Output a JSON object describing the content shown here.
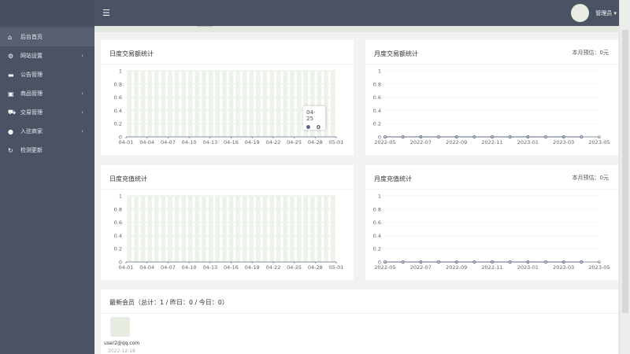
{
  "header": {
    "user": "管理员",
    "menu_icon": "hamburger-icon"
  },
  "sidebar": {
    "items": [
      {
        "label": "后台首页",
        "icon": "home-icon",
        "active": true,
        "sub": false
      },
      {
        "label": "网站设置",
        "icon": "gear-icon",
        "sub": true
      },
      {
        "label": "公告管理",
        "icon": "card-icon",
        "sub": false
      },
      {
        "label": "商品管理",
        "icon": "bag-icon",
        "sub": true
      },
      {
        "label": "交易管理",
        "icon": "cart-icon",
        "sub": true
      },
      {
        "label": "入驻商家",
        "icon": "user-icon",
        "sub": true
      },
      {
        "label": "检测更新",
        "icon": "refresh-icon",
        "sub": false
      }
    ]
  },
  "cards": {
    "daily_trade": {
      "title": "日度交易额统计"
    },
    "monthly_trade": {
      "title": "月度交易额统计",
      "extra": "本月预估：0元"
    },
    "daily_recharge": {
      "title": "日度充值统计"
    },
    "monthly_recharge": {
      "title": "月度充值统计",
      "extra": "本月预估：0元"
    }
  },
  "tooltip": {
    "label": "04-25",
    "value": "0"
  },
  "members": {
    "title": "最新会员（总计：1 / 昨日：0 / 今日：0）",
    "list": [
      {
        "email": "user2@qq.com",
        "date": "2022-12-18"
      }
    ]
  },
  "chart_data": [
    {
      "type": "bar",
      "title": "日度交易额统计",
      "categories": [
        "04-01",
        "04-02",
        "04-03",
        "04-04",
        "04-05",
        "04-06",
        "04-07",
        "04-08",
        "04-09",
        "04-10",
        "04-11",
        "04-12",
        "04-13",
        "04-14",
        "04-15",
        "04-16",
        "04-17",
        "04-18",
        "04-19",
        "04-20",
        "04-21",
        "04-22",
        "04-23",
        "04-24",
        "04-25",
        "04-26",
        "04-27",
        "04-28",
        "04-29",
        "04-30",
        "05-01"
      ],
      "values": [
        0,
        0,
        0,
        0,
        0,
        0,
        0,
        0,
        0,
        0,
        0,
        0,
        0,
        0,
        0,
        0,
        0,
        0,
        0,
        0,
        0,
        0,
        0,
        0,
        0,
        0,
        0,
        0,
        0,
        0,
        0
      ],
      "xticks": [
        "04-01",
        "04-04",
        "04-07",
        "04-10",
        "04-13",
        "04-16",
        "04-19",
        "04-22",
        "04-25",
        "04-28",
        "05-01"
      ],
      "yticks": [
        "0",
        "0.2",
        "0.4",
        "0.6",
        "0.8",
        "1"
      ],
      "ylim": [
        0,
        1
      ]
    },
    {
      "type": "line",
      "title": "月度交易额统计",
      "categories": [
        "2022-05",
        "2022-06",
        "2022-07",
        "2022-08",
        "2022-09",
        "2022-10",
        "2022-11",
        "2022-12",
        "2023-01",
        "2023-02",
        "2023-03",
        "2023-04",
        "2023-05"
      ],
      "values": [
        0,
        0,
        0,
        0,
        0,
        0,
        0,
        0,
        0,
        0,
        0,
        0,
        0
      ],
      "xticks": [
        "2022-05",
        "2022-07",
        "2022-09",
        "2022-11",
        "2023-01",
        "2023-03",
        "2023-05"
      ],
      "yticks": [
        "0",
        "0.2",
        "0.4",
        "0.6",
        "0.8",
        "1"
      ],
      "ylim": [
        0,
        1
      ],
      "color": "#5b6790"
    },
    {
      "type": "bar",
      "title": "日度充值统计",
      "categories": [
        "04-01",
        "04-02",
        "04-03",
        "04-04",
        "04-05",
        "04-06",
        "04-07",
        "04-08",
        "04-09",
        "04-10",
        "04-11",
        "04-12",
        "04-13",
        "04-14",
        "04-15",
        "04-16",
        "04-17",
        "04-18",
        "04-19",
        "04-20",
        "04-21",
        "04-22",
        "04-23",
        "04-24",
        "04-25",
        "04-26",
        "04-27",
        "04-28",
        "04-29",
        "04-30",
        "05-01"
      ],
      "values": [
        0,
        0,
        0,
        0,
        0,
        0,
        0,
        0,
        0,
        0,
        0,
        0,
        0,
        0,
        0,
        0,
        0,
        0,
        0,
        0,
        0,
        0,
        0,
        0,
        0,
        0,
        0,
        0,
        0,
        0,
        0
      ],
      "xticks": [
        "04-01",
        "04-04",
        "04-07",
        "04-10",
        "04-13",
        "04-16",
        "04-19",
        "04-22",
        "04-25",
        "04-28",
        "05-01"
      ],
      "yticks": [
        "0",
        "0.2",
        "0.4",
        "0.6",
        "0.8",
        "1"
      ],
      "ylim": [
        0,
        1
      ]
    },
    {
      "type": "line",
      "title": "月度充值统计",
      "categories": [
        "2022-05",
        "2022-06",
        "2022-07",
        "2022-08",
        "2022-09",
        "2022-10",
        "2022-11",
        "2022-12",
        "2023-01",
        "2023-02",
        "2023-03",
        "2023-04",
        "2023-05"
      ],
      "values": [
        0,
        0,
        0,
        0,
        0,
        0,
        0,
        0,
        0,
        0,
        0,
        0,
        0
      ],
      "xticks": [
        "2022-05",
        "2022-07",
        "2022-09",
        "2022-11",
        "2023-01",
        "2023-03",
        "2023-05"
      ],
      "yticks": [
        "0",
        "0.2",
        "0.4",
        "0.6",
        "0.8",
        "1"
      ],
      "ylim": [
        0,
        1
      ],
      "color": "#5b6790"
    }
  ]
}
